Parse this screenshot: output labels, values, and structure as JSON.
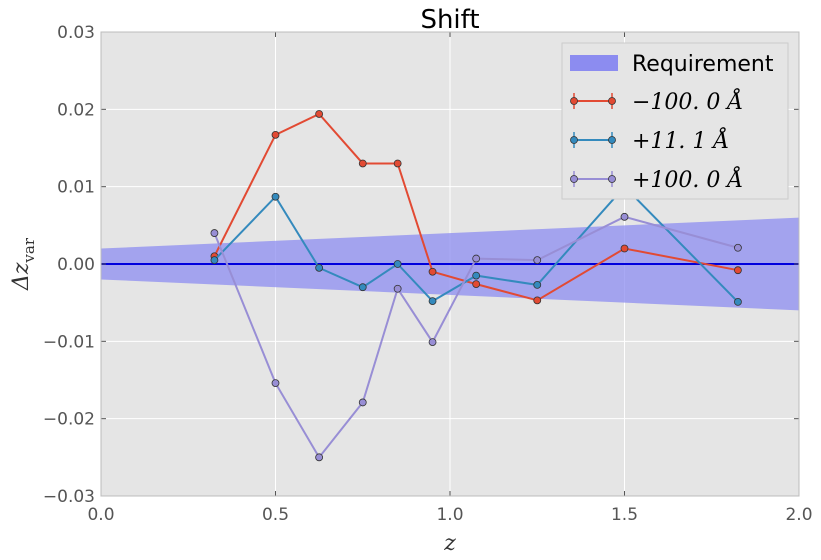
{
  "chart_data": {
    "type": "line",
    "title": "Shift",
    "xlabel": "z",
    "ylabel": "Δz_var",
    "xlim": [
      0.0,
      2.0
    ],
    "ylim": [
      -0.03,
      0.03
    ],
    "x_ticks": [
      "0.0",
      "0.5",
      "1.0",
      "1.5",
      "2.0"
    ],
    "y_ticks": [
      "0.03",
      "0.02",
      "0.01",
      "0.00",
      "−0.01",
      "−0.02",
      "−0.03"
    ],
    "grid": true,
    "legend_position": "top-right",
    "background_color": "#e5e5e5",
    "requirement": {
      "name": "Requirement",
      "color": "#8c8cf0",
      "x": [
        0.0,
        2.0
      ],
      "upper": [
        0.002,
        0.006
      ],
      "lower": [
        -0.002,
        -0.006
      ]
    },
    "reference_line": {
      "y": 0.0,
      "color": "#0000dd"
    },
    "series": [
      {
        "name": "−100. 0 Å",
        "color": "#e24a33",
        "x": [
          0.325,
          0.5,
          0.625,
          0.75,
          0.85,
          0.95,
          1.075,
          1.25,
          1.5,
          1.825
        ],
        "y": [
          0.001,
          0.0167,
          0.0194,
          0.013,
          0.013,
          -0.001,
          -0.0026,
          -0.0047,
          0.002,
          -0.0008
        ]
      },
      {
        "name": "+11. 1 Å",
        "color": "#348abd",
        "x": [
          0.325,
          0.5,
          0.625,
          0.75,
          0.85,
          0.95,
          1.075,
          1.25,
          1.5,
          1.825
        ],
        "y": [
          0.0005,
          0.0087,
          -0.0005,
          -0.003,
          0.0,
          -0.0048,
          -0.0015,
          -0.0027,
          0.01,
          -0.0049
        ]
      },
      {
        "name": "+100. 0 Å",
        "color": "#988ed5",
        "x": [
          0.325,
          0.5,
          0.625,
          0.75,
          0.85,
          0.95,
          1.075,
          1.25,
          1.5,
          1.825
        ],
        "y": [
          0.004,
          -0.0154,
          -0.025,
          -0.0179,
          -0.0032,
          -0.0101,
          0.0007,
          0.0005,
          0.0061,
          0.0021
        ]
      }
    ]
  }
}
